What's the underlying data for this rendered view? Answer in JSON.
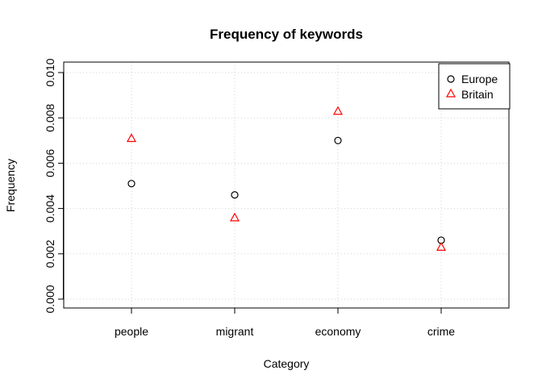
{
  "chart_data": {
    "type": "scatter",
    "title": "Frequency of keywords",
    "xlabel": "Category",
    "ylabel": "Frequency",
    "categories": [
      "people",
      "migrant",
      "economy",
      "crime"
    ],
    "ylim": [
      0,
      0.01
    ],
    "yticks": [
      "0.000",
      "0.002",
      "0.004",
      "0.006",
      "0.008",
      "0.010"
    ],
    "grid": true,
    "legend_position": "top-right",
    "series": [
      {
        "name": "Europe",
        "marker": "circle",
        "color": "#000000",
        "values": [
          0.0051,
          0.0046,
          0.007,
          0.0026
        ]
      },
      {
        "name": "Britain",
        "marker": "triangle",
        "color": "#ff0000",
        "values": [
          0.0071,
          0.0036,
          0.0083,
          0.0023
        ]
      }
    ]
  }
}
